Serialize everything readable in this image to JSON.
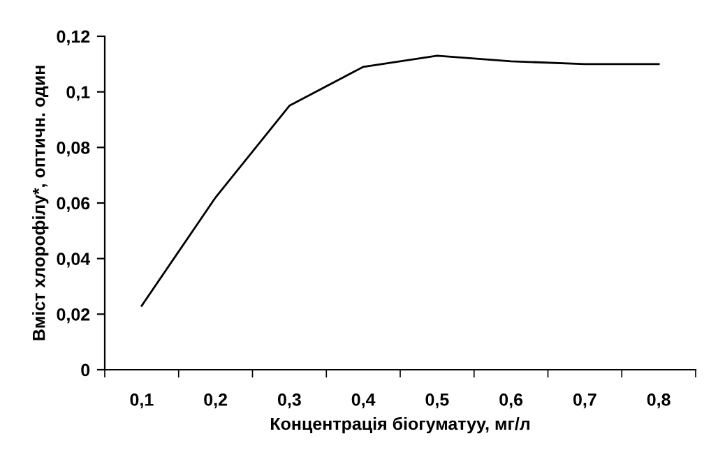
{
  "chart_data": {
    "type": "line",
    "xlabel": "Концентрація біогуматуу, мг/л",
    "ylabel": "Вміст хлорофілу*, оптичн. один",
    "categories": [
      "0,1",
      "0,2",
      "0,3",
      "0,4",
      "0,5",
      "0,6",
      "0,7",
      "0,8"
    ],
    "series": [
      {
        "color": "#000000",
        "values": [
          0.023,
          0.062,
          0.095,
          0.109,
          0.113,
          0.111,
          0.11,
          0.11
        ]
      }
    ],
    "ylim": [
      0,
      0.12
    ],
    "yticks": [
      {
        "value": 0,
        "label": "0"
      },
      {
        "value": 0.02,
        "label": "0,02"
      },
      {
        "value": 0.04,
        "label": "0,04"
      },
      {
        "value": 0.06,
        "label": "0,06"
      },
      {
        "value": 0.08,
        "label": "0,08"
      },
      {
        "value": 0.1,
        "label": "0,1"
      },
      {
        "value": 0.12,
        "label": "0,12"
      }
    ],
    "grid": false,
    "legend": false,
    "marker": "none",
    "line_style": "solid"
  }
}
